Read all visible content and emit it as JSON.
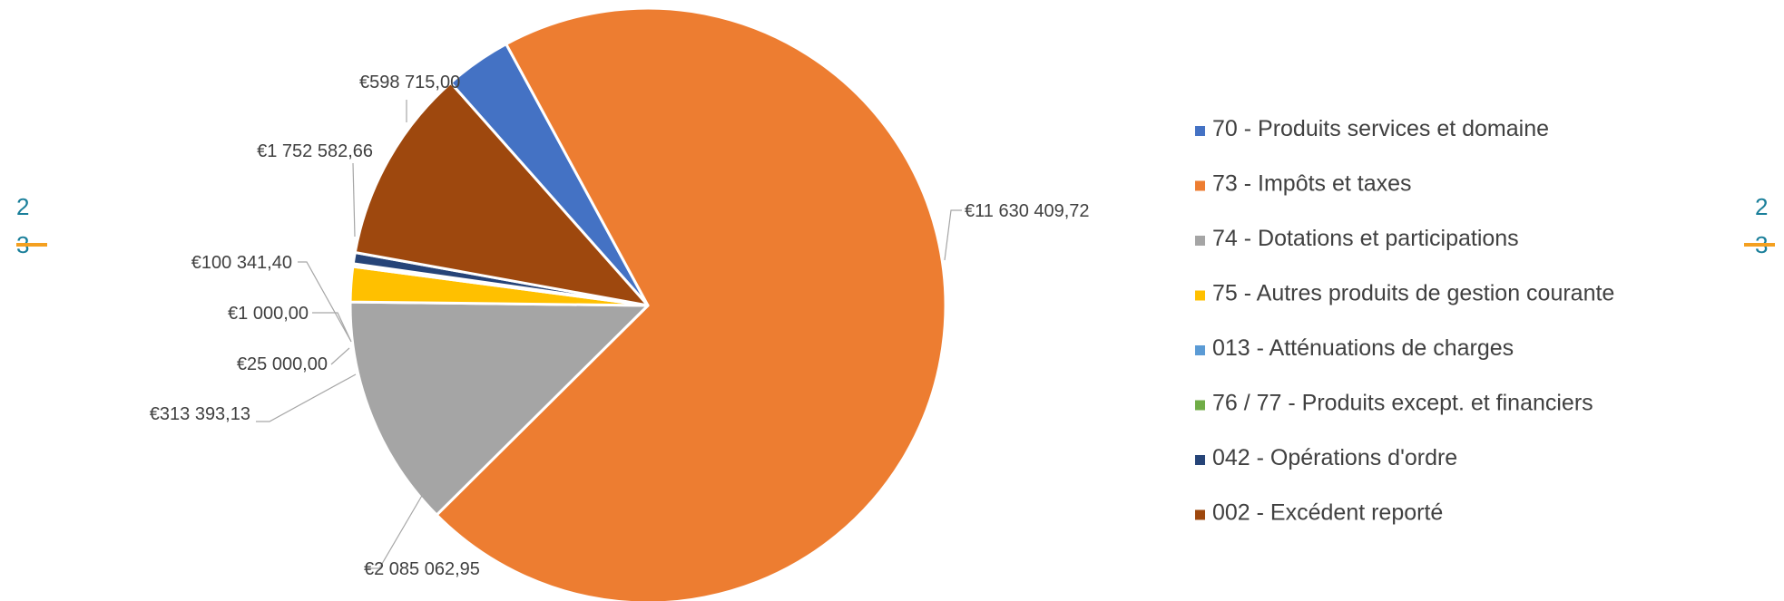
{
  "chart_data": {
    "type": "pie",
    "start_angle_deg": 360,
    "slices": [
      {
        "name": "70 - Produits services et domaine",
        "value": 598715.0,
        "label": "€598 715,00",
        "color": "#4472C4"
      },
      {
        "name": "73 - Impôts et taxes",
        "value": 11630409.72,
        "label": "€11 630 409,72",
        "color": "#ED7D31"
      },
      {
        "name": "74 - Dotations et participations",
        "value": 2085062.95,
        "label": "€2 085 062,95",
        "color": "#A5A5A5"
      },
      {
        "name": "75 - Autres produits de gestion courante",
        "value": 313393.13,
        "label": "€313 393,13",
        "color": "#FFC000"
      },
      {
        "name": "013 - Atténuations de charges",
        "value": 25000.0,
        "label": "€25 000,00",
        "color": "#5B9BD5"
      },
      {
        "name": "76 / 77 - Produits except. et financiers",
        "value": 1000.0,
        "label": "€1 000,00",
        "color": "#70AD47"
      },
      {
        "name": "042 - Opérations d'ordre",
        "value": 100341.4,
        "label": "€100 341,40",
        "color": "#264478"
      },
      {
        "name": "002 - Excédent reporté",
        "value": 1752582.66,
        "label": "€1 752 582,66",
        "color": "#9E480E"
      }
    ],
    "legend_position": "right"
  },
  "page_markers": {
    "left": {
      "top": "2",
      "bottom": "3"
    },
    "right": {
      "top": "2",
      "bottom": "3"
    }
  }
}
